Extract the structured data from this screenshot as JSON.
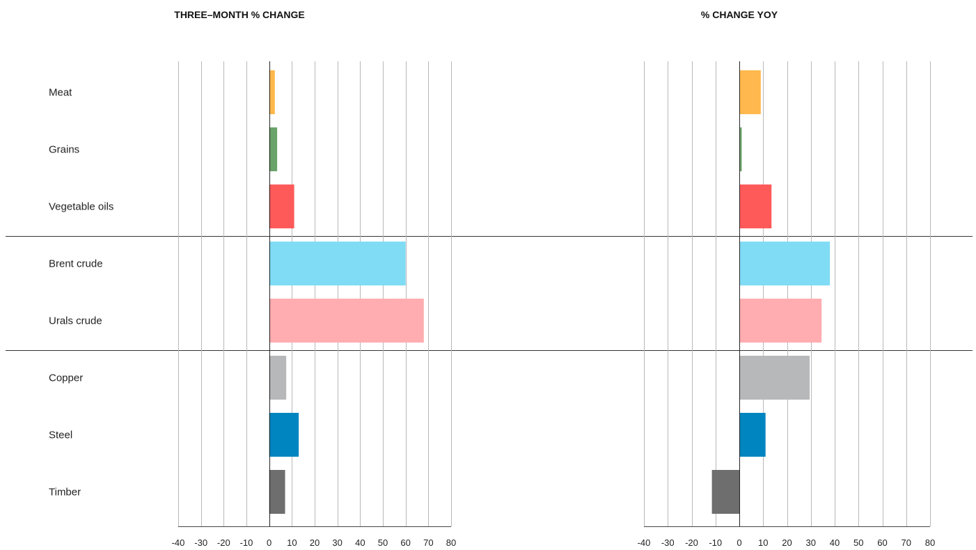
{
  "chart_data": [
    {
      "type": "bar",
      "orientation": "horizontal",
      "title": "THREE–MONTH % CHANGE",
      "categories": [
        "Meat",
        "Grains",
        "Vegetable oils",
        "Brent crude",
        "Urals crude",
        "Copper",
        "Steel",
        "Timber"
      ],
      "values": [
        2.5,
        3.5,
        11,
        60,
        68,
        7.5,
        13,
        7
      ],
      "colors": [
        "#ffb84d",
        "#6aa36a",
        "#ff5a5a",
        "#80dcf5",
        "#ffadb0",
        "#b7b8ba",
        "#0085c0",
        "#6e6e6e"
      ],
      "xlim": [
        -40,
        80
      ],
      "xticks": [
        -40,
        -30,
        -20,
        -10,
        0,
        10,
        20,
        30,
        40,
        50,
        60,
        70,
        80
      ],
      "group_breaks_after": [
        "Vegetable oils",
        "Urals crude"
      ],
      "grid": true
    },
    {
      "type": "bar",
      "orientation": "horizontal",
      "title": "% CHANGE YOY",
      "categories": [
        "Meat",
        "Grains",
        "Vegetable oils",
        "Brent crude",
        "Urals crude",
        "Copper",
        "Steel",
        "Timber"
      ],
      "values": [
        9,
        1,
        13.5,
        38,
        34.5,
        29.5,
        11,
        -11.5
      ],
      "colors": [
        "#ffb84d",
        "#6aa36a",
        "#ff5a5a",
        "#80dcf5",
        "#ffadb0",
        "#b7b8ba",
        "#0085c0",
        "#6e6e6e"
      ],
      "xlim": [
        -40,
        80
      ],
      "xticks": [
        -40,
        -30,
        -20,
        -10,
        0,
        10,
        20,
        30,
        40,
        50,
        60,
        70,
        80
      ],
      "group_breaks_after": [
        "Vegetable oils",
        "Urals crude"
      ],
      "grid": true
    }
  ]
}
